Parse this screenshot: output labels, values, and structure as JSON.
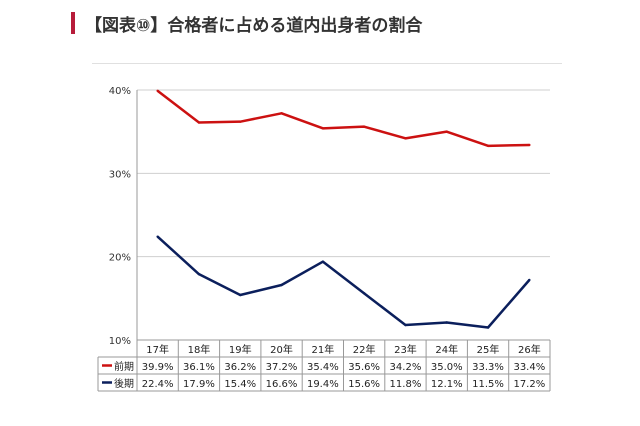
{
  "heading": {
    "title": "【図表⑩】合格者に占める道内出身者の割合"
  },
  "colors": {
    "accent": "#b71c3a",
    "series_early": "#cc1111",
    "series_late": "#0b1f5c"
  },
  "chart_data": {
    "type": "line",
    "title": "",
    "xlabel": "",
    "ylabel": "",
    "categories": [
      "17年",
      "18年",
      "19年",
      "20年",
      "21年",
      "22年",
      "23年",
      "24年",
      "25年",
      "26年"
    ],
    "yticks": [
      "40%",
      "30%",
      "20%",
      "10%"
    ],
    "ylim": [
      10,
      40
    ],
    "grid": true,
    "legend": "data-table-left",
    "series": [
      {
        "name": "前期",
        "values": [
          39.9,
          36.1,
          36.2,
          37.2,
          35.4,
          35.6,
          34.2,
          35.0,
          33.3,
          33.4
        ],
        "labels": [
          "39.9%",
          "36.1%",
          "36.2%",
          "37.2%",
          "35.4%",
          "35.6%",
          "34.2%",
          "35.0%",
          "33.3%",
          "33.4%"
        ],
        "color": "#cc1111"
      },
      {
        "name": "後期",
        "values": [
          22.4,
          17.9,
          15.4,
          16.6,
          19.4,
          15.6,
          11.8,
          12.1,
          11.5,
          17.2
        ],
        "labels": [
          "22.4%",
          "17.9%",
          "15.4%",
          "16.6%",
          "19.4%",
          "15.6%",
          "11.8%",
          "12.1%",
          "11.5%",
          "17.2%"
        ],
        "color": "#0b1f5c"
      }
    ]
  }
}
